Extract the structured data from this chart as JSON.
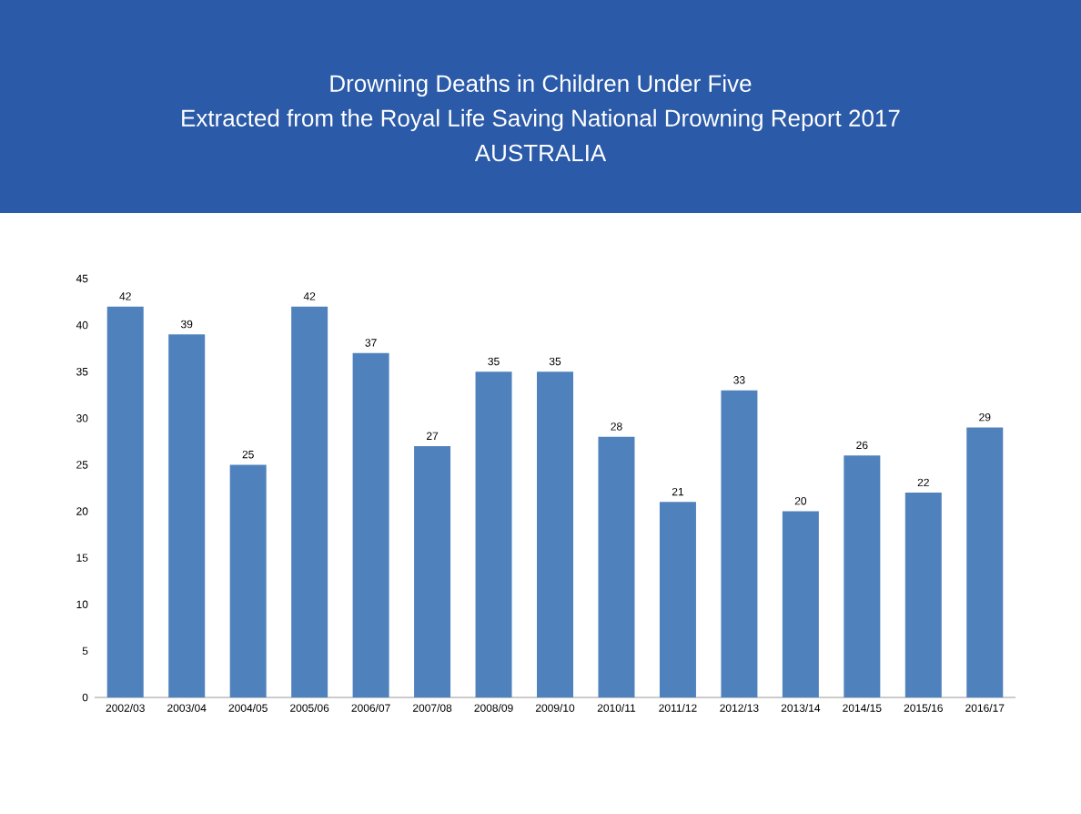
{
  "chart_data": {
    "type": "bar",
    "title": "Drowning Deaths in Children Under Five",
    "subtitle": "Extracted from the Royal Life Saving National Drowning Report 2017",
    "annotations": [
      "AUSTRALIA"
    ],
    "categories": [
      "2002/03",
      "2003/04",
      "2004/05",
      "2005/06",
      "2006/07",
      "2007/08",
      "2008/09",
      "2009/10",
      "2010/11",
      "2011/12",
      "2012/13",
      "2013/14",
      "2014/15",
      "2015/16",
      "2016/17"
    ],
    "values": [
      42,
      39,
      25,
      42,
      37,
      27,
      35,
      35,
      28,
      21,
      33,
      20,
      26,
      22,
      29
    ],
    "color": "#4f81bd",
    "ylim": [
      0,
      45
    ],
    "yticks": [
      0,
      5,
      10,
      15,
      20,
      25,
      30,
      35,
      40,
      45
    ],
    "data_labels": true,
    "grid": false
  }
}
